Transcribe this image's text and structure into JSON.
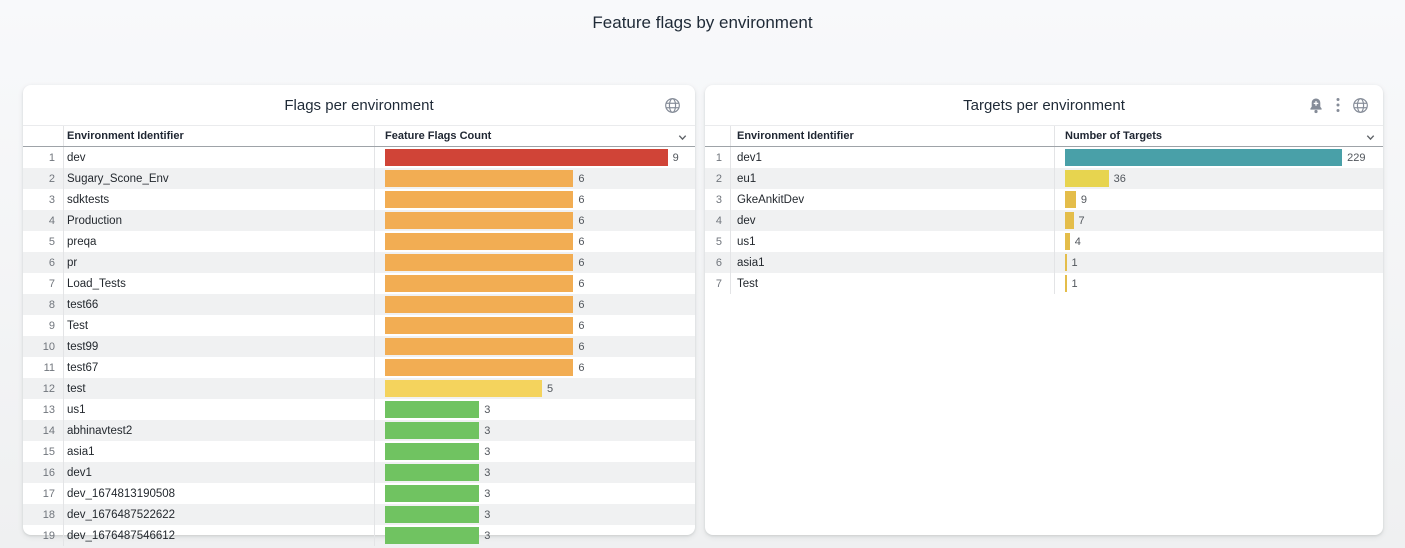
{
  "page": {
    "title": "Feature flags by environment"
  },
  "charts": {
    "flags": {
      "title": "Flags per environment",
      "icons": [
        "globe-icon"
      ],
      "sort_indicator": "chevron-down",
      "columns": {
        "dimension": "Environment Identifier",
        "metric": "Feature Flags Count"
      },
      "max_value": 9,
      "rows": [
        {
          "rank": "1",
          "name": "dev",
          "value": 9,
          "color": "#D04437"
        },
        {
          "rank": "2",
          "name": "Sugary_Scone_Env",
          "value": 6,
          "color": "#F2AD53"
        },
        {
          "rank": "3",
          "name": "sdktests",
          "value": 6,
          "color": "#F2AD53"
        },
        {
          "rank": "4",
          "name": "Production",
          "value": 6,
          "color": "#F2AD53"
        },
        {
          "rank": "5",
          "name": "preqa",
          "value": 6,
          "color": "#F2AD53"
        },
        {
          "rank": "6",
          "name": "pr",
          "value": 6,
          "color": "#F2AD53"
        },
        {
          "rank": "7",
          "name": "Load_Tests",
          "value": 6,
          "color": "#F2AD53"
        },
        {
          "rank": "8",
          "name": "test66",
          "value": 6,
          "color": "#F2AD53"
        },
        {
          "rank": "9",
          "name": "Test",
          "value": 6,
          "color": "#F2AD53"
        },
        {
          "rank": "10",
          "name": "test99",
          "value": 6,
          "color": "#F2AD53"
        },
        {
          "rank": "11",
          "name": "test67",
          "value": 6,
          "color": "#F2AD53"
        },
        {
          "rank": "12",
          "name": "test",
          "value": 5,
          "color": "#F4D35D"
        },
        {
          "rank": "13",
          "name": "us1",
          "value": 3,
          "color": "#70C361"
        },
        {
          "rank": "14",
          "name": "abhinavtest2",
          "value": 3,
          "color": "#70C361"
        },
        {
          "rank": "15",
          "name": "asia1",
          "value": 3,
          "color": "#70C361"
        },
        {
          "rank": "16",
          "name": "dev1",
          "value": 3,
          "color": "#70C361"
        },
        {
          "rank": "17",
          "name": "dev_1674813190508",
          "value": 3,
          "color": "#70C361"
        },
        {
          "rank": "18",
          "name": "dev_1676487522622",
          "value": 3,
          "color": "#70C361"
        },
        {
          "rank": "19",
          "name": "dev_1676487546612",
          "value": 3,
          "color": "#70C361"
        }
      ]
    },
    "targets": {
      "title": "Targets per environment",
      "icons": [
        "bell-plus-icon",
        "kebab-menu-icon",
        "globe-icon"
      ],
      "sort_indicator": "chevron-down",
      "columns": {
        "dimension": "Environment Identifier",
        "metric": "Number of Targets"
      },
      "max_value": 229,
      "rows": [
        {
          "rank": "1",
          "name": "dev1",
          "value": 229,
          "color": "#49A0A8"
        },
        {
          "rank": "2",
          "name": "eu1",
          "value": 36,
          "color": "#E7D44F"
        },
        {
          "rank": "3",
          "name": "GkeAnkitDev",
          "value": 9,
          "color": "#E4BD4A"
        },
        {
          "rank": "4",
          "name": "dev",
          "value": 7,
          "color": "#E4BD4A"
        },
        {
          "rank": "5",
          "name": "us1",
          "value": 4,
          "color": "#E4BD4A"
        },
        {
          "rank": "6",
          "name": "asia1",
          "value": 1,
          "color": "#E4BD4A"
        },
        {
          "rank": "7",
          "name": "Test",
          "value": 1,
          "color": "#E4BD4A"
        }
      ]
    }
  },
  "chart_data": [
    {
      "type": "bar",
      "orientation": "horizontal",
      "title": "Flags per environment",
      "xlabel": "Feature Flags Count",
      "ylabel": "Environment Identifier",
      "xlim": [
        0,
        9
      ],
      "categories": [
        "dev",
        "Sugary_Scone_Env",
        "sdktests",
        "Production",
        "preqa",
        "pr",
        "Load_Tests",
        "test66",
        "Test",
        "test99",
        "test67",
        "test",
        "us1",
        "abhinavtest2",
        "asia1",
        "dev1",
        "dev_1674813190508",
        "dev_1676487522622",
        "dev_1676487546612"
      ],
      "values": [
        9,
        6,
        6,
        6,
        6,
        6,
        6,
        6,
        6,
        6,
        6,
        5,
        3,
        3,
        3,
        3,
        3,
        3,
        3
      ],
      "bar_colors": [
        "#D04437",
        "#F2AD53",
        "#F2AD53",
        "#F2AD53",
        "#F2AD53",
        "#F2AD53",
        "#F2AD53",
        "#F2AD53",
        "#F2AD53",
        "#F2AD53",
        "#F2AD53",
        "#F4D35D",
        "#70C361",
        "#70C361",
        "#70C361",
        "#70C361",
        "#70C361",
        "#70C361",
        "#70C361"
      ],
      "grid": false,
      "legend": false
    },
    {
      "type": "bar",
      "orientation": "horizontal",
      "title": "Targets per environment",
      "xlabel": "Number of Targets",
      "ylabel": "Environment Identifier",
      "xlim": [
        0,
        229
      ],
      "categories": [
        "dev1",
        "eu1",
        "GkeAnkitDev",
        "dev",
        "us1",
        "asia1",
        "Test"
      ],
      "values": [
        229,
        36,
        9,
        7,
        4,
        1,
        1
      ],
      "bar_colors": [
        "#49A0A8",
        "#E7D44F",
        "#E4BD4A",
        "#E4BD4A",
        "#E4BD4A",
        "#E4BD4A",
        "#E4BD4A"
      ],
      "grid": false,
      "legend": false
    }
  ],
  "style": {
    "accent_text": "#1F2A37",
    "zebra_row": "#F0F1F2",
    "icon_gray": "#858C98",
    "card_bg": "#FFFFFF"
  }
}
